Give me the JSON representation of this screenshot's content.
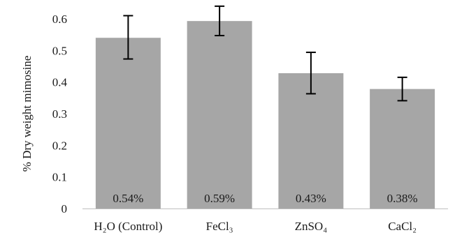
{
  "chart_data": {
    "type": "bar",
    "title": "",
    "xlabel": "",
    "ylabel": "% Dry weight mimosine",
    "ylim": [
      0,
      0.6
    ],
    "yticks": [
      "0",
      "0.1",
      "0.2",
      "0.3",
      "0.4",
      "0.5",
      "0.6"
    ],
    "categories": [
      "H₂O (Control)",
      "FeCl₃",
      "ZnSO₄",
      "CaCl₂"
    ],
    "values": [
      0.54,
      0.593,
      0.428,
      0.378
    ],
    "error_low": [
      0.473,
      0.547,
      0.363,
      0.341
    ],
    "error_high": [
      0.61,
      0.64,
      0.494,
      0.415
    ],
    "data_labels": [
      "0.54%",
      "0.59%",
      "0.43%",
      "0.38%"
    ],
    "grid": false,
    "legend": "none",
    "colors": {
      "bar": "#a6a6a6",
      "error_bar": "#000000",
      "axis": "#bfbfbf"
    }
  }
}
